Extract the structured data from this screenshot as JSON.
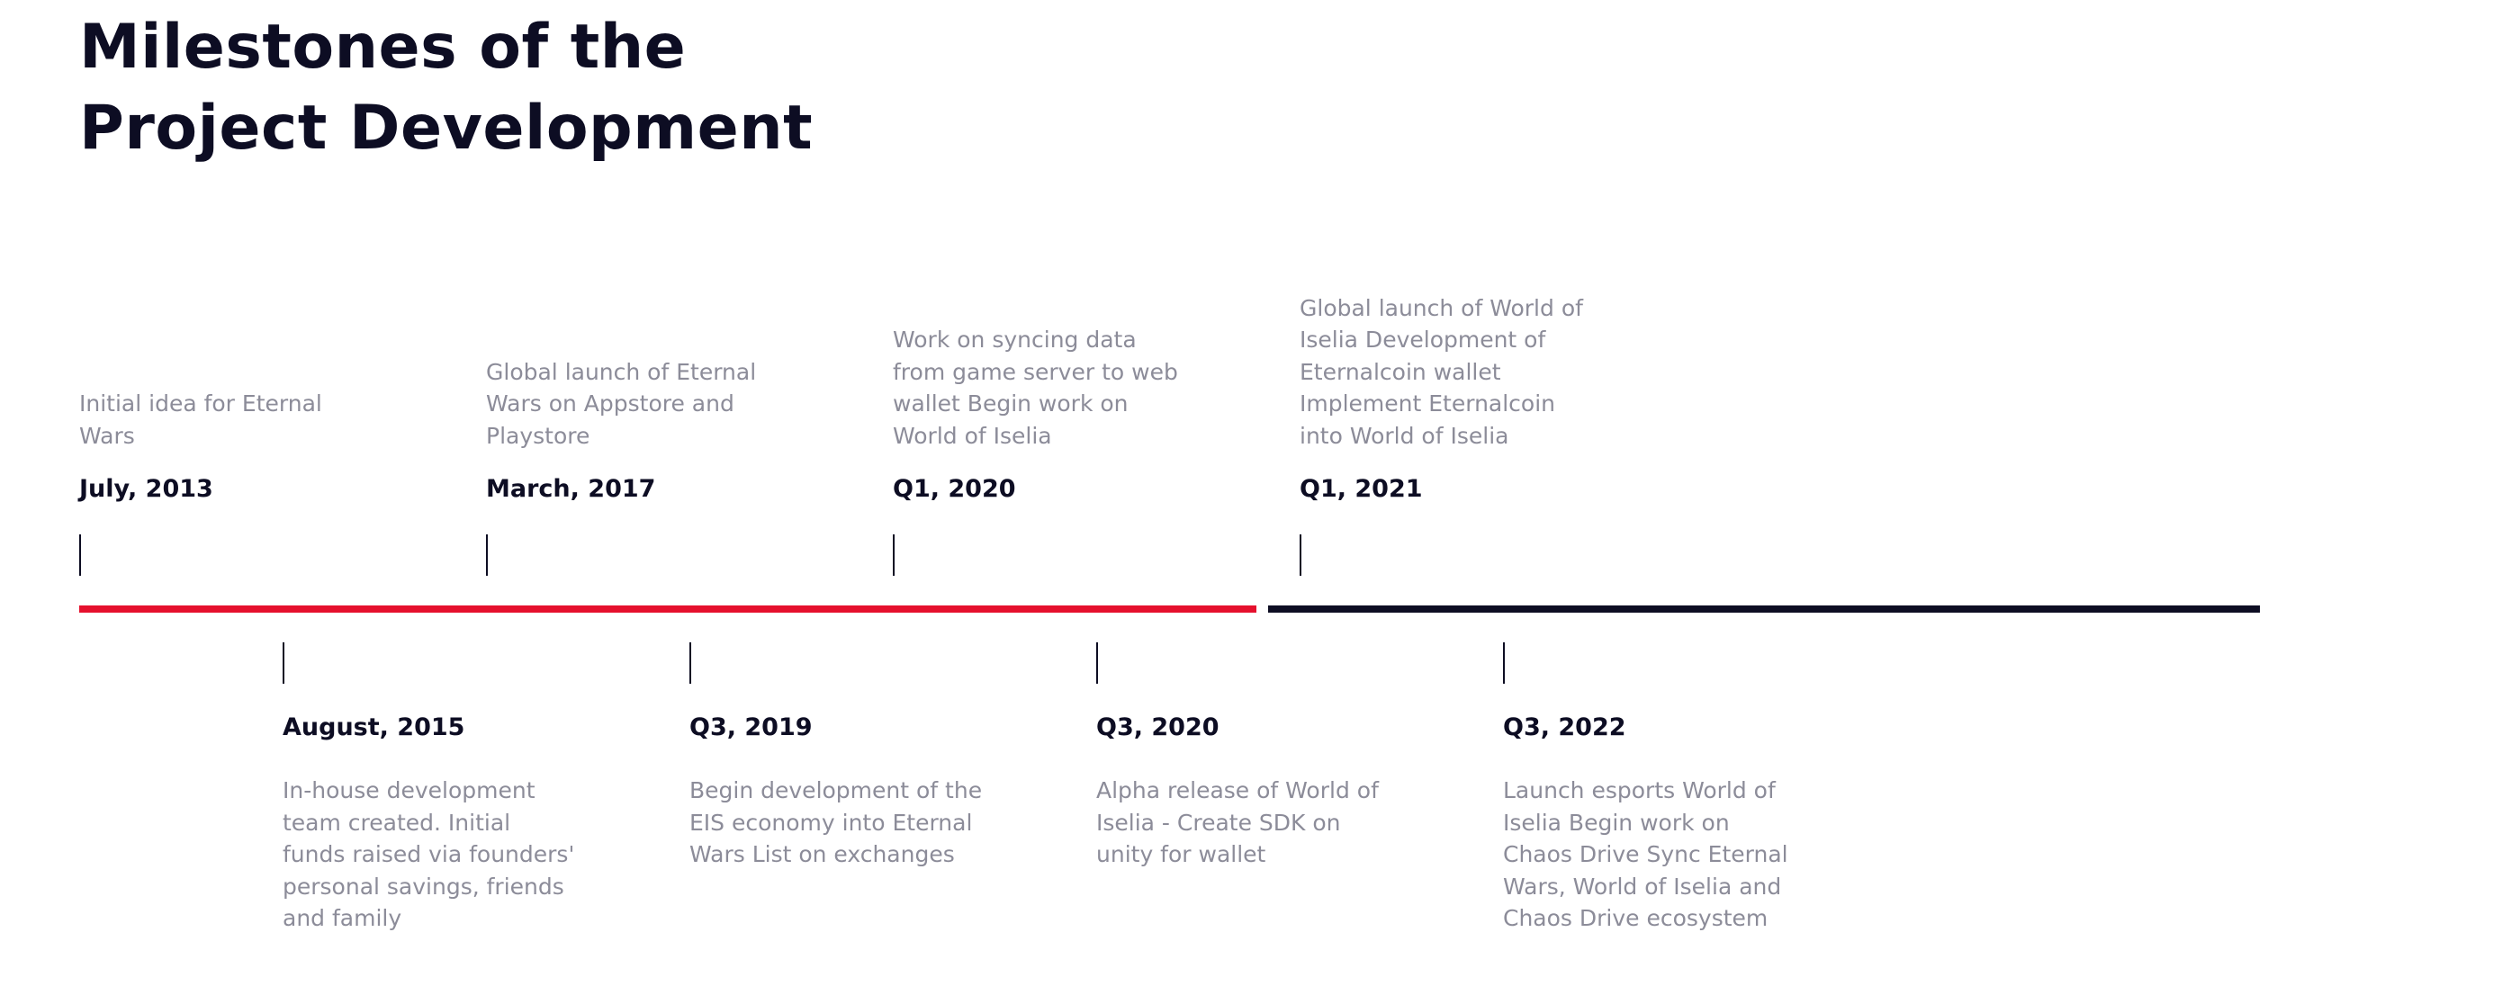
{
  "title": {
    "line1": "Milestones of the",
    "line2": "Project Development"
  },
  "colors": {
    "completed_line": "#e5102d",
    "upcoming_line": "#0d0d23",
    "heading": "#0d0d23",
    "description": "#8c8c99"
  },
  "milestones": [
    {
      "date": "July, 2013",
      "description": "Initial idea for Eternal Wars"
    },
    {
      "date": "August, 2015",
      "description": "In-house development team created. Initial funds raised via founders' personal savings, friends and family"
    },
    {
      "date": "March, 2017",
      "description": "Global launch of Eternal Wars on Appstore and Playstore"
    },
    {
      "date": "Q3, 2019",
      "description": "Begin development of the EIS economy into Eternal Wars List on exchanges"
    },
    {
      "date": "Q1, 2020",
      "description": "Work on syncing data from game server to web wallet Begin work on World of Iselia"
    },
    {
      "date": "Q3, 2020",
      "description": "Alpha release of World of Iselia - Create SDK on unity for wallet"
    },
    {
      "date": "Q1, 2021",
      "description": "Global launch of World of Iselia Development of Eternalcoin wallet Implement Eternalcoin into World of Iselia"
    },
    {
      "date": "Q3, 2022",
      "description": "Launch esports World of Iselia Begin work on Chaos Drive Sync Eternal Wars, World of Iselia and Chaos Drive ecosystem"
    }
  ]
}
